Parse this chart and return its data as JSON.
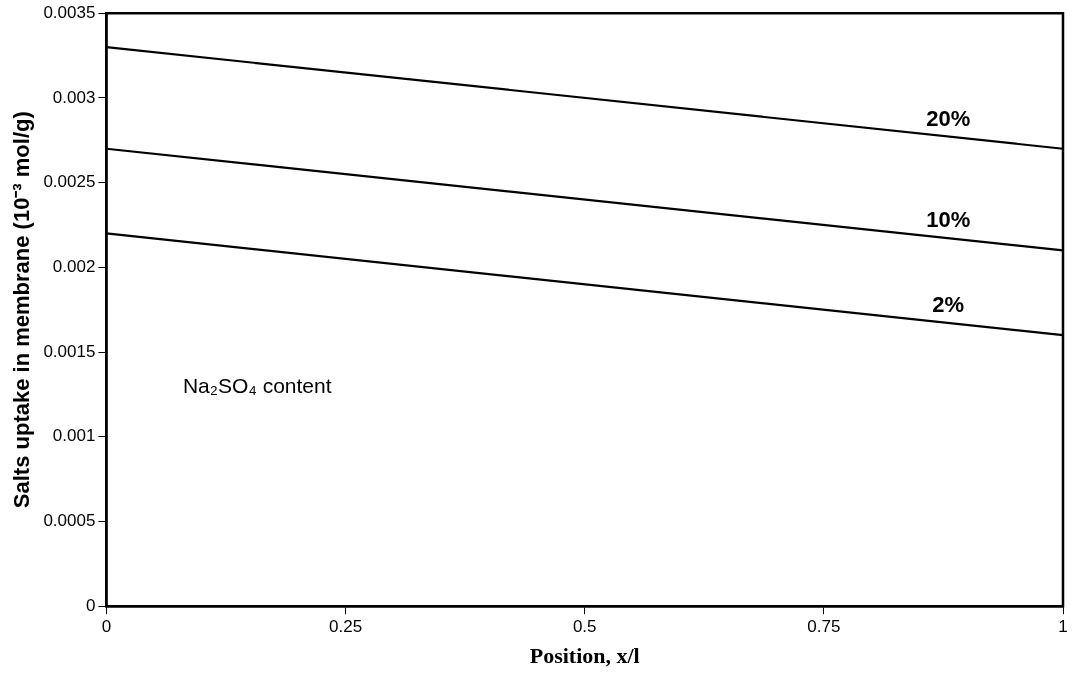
{
  "chart_data": {
    "type": "line",
    "xlabel": "Position, x/l",
    "ylabel": "Salts uptake in membrane (10⁻³ mol/g)",
    "x": [
      0,
      1
    ],
    "series": [
      {
        "name": "20%",
        "color": "#000000",
        "values": [
          0.0033,
          0.0027
        ]
      },
      {
        "name": "10%",
        "color": "#000000",
        "values": [
          0.0027,
          0.0021
        ]
      },
      {
        "name": "2%",
        "color": "#000000",
        "values": [
          0.0022,
          0.0016
        ]
      }
    ],
    "xlim": [
      0,
      1
    ],
    "xticks": [
      0,
      0.25,
      0.5,
      0.75,
      1
    ],
    "ylim": [
      0,
      0.0035
    ],
    "yticks": [
      0,
      0.0005,
      0.001,
      0.0015,
      0.002,
      0.0025,
      0.003,
      0.0035
    ],
    "annotations": [
      "Na₂SO₄ content"
    ],
    "grid": false,
    "legend": false,
    "marker": "none",
    "line_style": "solid"
  }
}
